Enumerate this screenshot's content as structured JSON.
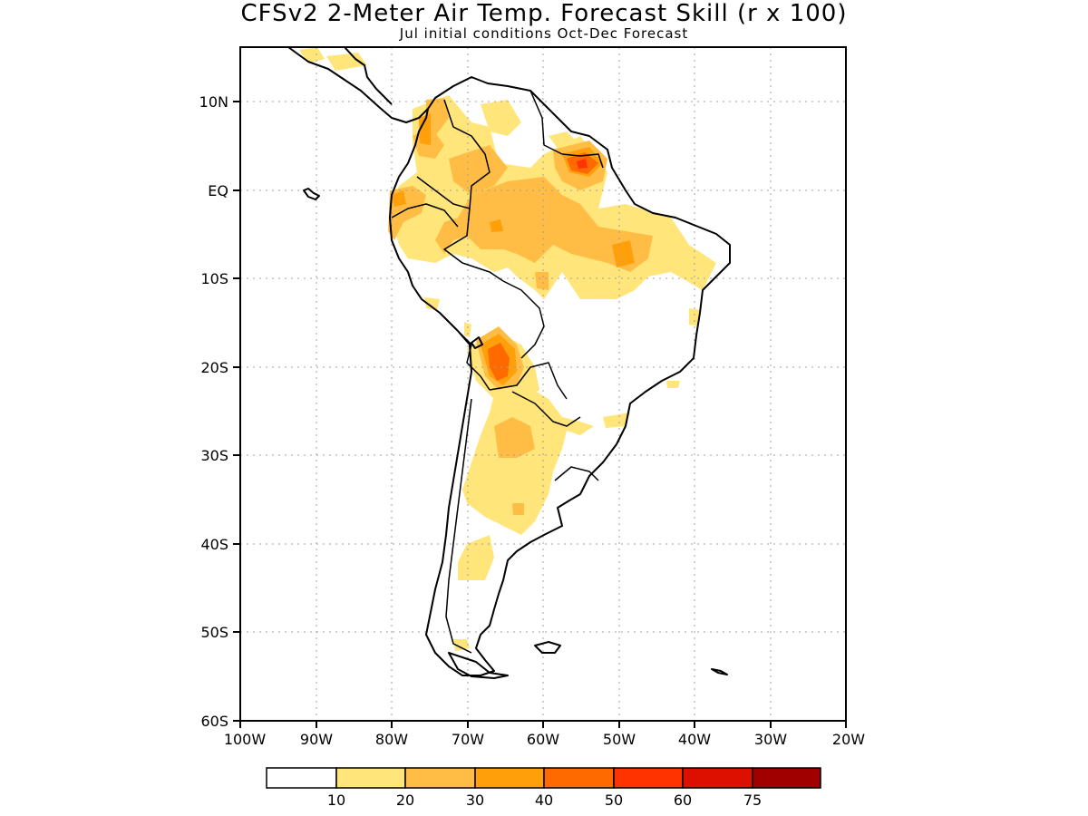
{
  "title": "CFSv2 2-Meter Air Temp. Forecast Skill (r x 100)",
  "subtitle": "Jul initial conditions  Oct-Dec Forecast",
  "map": {
    "lat_labels": [
      "10N",
      "EQ",
      "10S",
      "20S",
      "30S",
      "40S",
      "50S",
      "60S"
    ],
    "lon_labels": [
      "100W",
      "90W",
      "80W",
      "70W",
      "60W",
      "50W",
      "40W",
      "30W",
      "20W"
    ],
    "grid": "dotted"
  },
  "legend": {
    "colors": [
      "#ffffff",
      "#ffe57a",
      "#ffbd45",
      "#ffa00a",
      "#ff6a00",
      "#ff3300",
      "#dd1000",
      "#a00000"
    ],
    "labels": [
      "10",
      "20",
      "30",
      "40",
      "50",
      "60",
      "75"
    ]
  }
}
